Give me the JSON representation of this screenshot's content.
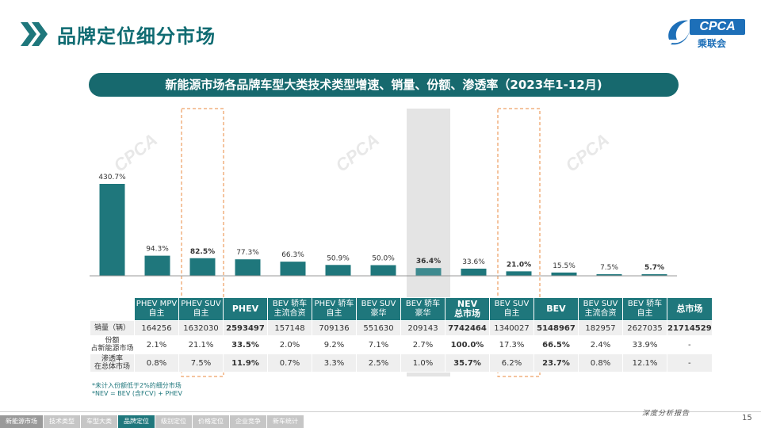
{
  "header": {
    "title": "品牌定位细分市场"
  },
  "logo": {
    "brand": "CPCA",
    "sub": "乘联会"
  },
  "banner": {
    "title": "新能源市场各品牌车型大类技术类型增速、销量、份额、渗透率（2023年1-12月)"
  },
  "watermark": {
    "text": "CPCA"
  },
  "chart_data": {
    "type": "bar",
    "categories": [
      "PHEV MPV 自主",
      "PHEV SUV 自主",
      "PHEV",
      "BEV 轿车 主流合资",
      "PHEV 轿车 自主",
      "BEV SUV 豪华",
      "BEV 轿车 豪华",
      "NEV 总市场",
      "BEV SUV 自主",
      "BEV",
      "BEV SUV 主流合资",
      "BEV 轿车 自主",
      "总市场"
    ],
    "values": [
      430.7,
      94.3,
      82.5,
      77.3,
      66.3,
      50.9,
      50.0,
      36.4,
      33.6,
      21.0,
      15.5,
      7.5,
      5.7
    ],
    "value_labels": [
      "430.7%",
      "94.3%",
      "82.5%",
      "77.3%",
      "66.3%",
      "50.9%",
      "50.0%",
      "36.4%",
      "33.6%",
      "21.0%",
      "15.5%",
      "7.5%",
      "5.7%"
    ],
    "bold_indices": [
      2,
      7,
      9,
      12
    ],
    "highlight_dashed": [
      2,
      9
    ],
    "highlight_shaded": [
      7
    ],
    "ylim": [
      0,
      430.7
    ],
    "colors": {
      "bar": "#1f777c",
      "bar_nev": "#3e8a8f",
      "dash": "#e8893f",
      "shade": "#d9d9d9"
    }
  },
  "table": {
    "headers": [
      [
        "PHEV MPV",
        "自主"
      ],
      [
        "PHEV SUV",
        "自主"
      ],
      [
        "PHEV"
      ],
      [
        "BEV 轿车",
        "主流合资"
      ],
      [
        "PHEV 轿车",
        "自主"
      ],
      [
        "BEV SUV",
        "豪华"
      ],
      [
        "BEV 轿车",
        "豪华"
      ],
      [
        "NEV",
        "总市场"
      ],
      [
        "BEV SUV",
        "自主"
      ],
      [
        "BEV"
      ],
      [
        "BEV SUV",
        "主流合资"
      ],
      [
        "BEV 轿车",
        "自主"
      ],
      [
        "总市场"
      ]
    ],
    "bold_header_indices": [
      2,
      7,
      9,
      12
    ],
    "rows": [
      {
        "label": [
          "销量（辆）"
        ],
        "values": [
          "164256",
          "1632030",
          "2593497",
          "157148",
          "709136",
          "551630",
          "209143",
          "7742464",
          "1340027",
          "5148967",
          "182957",
          "2627035",
          "21714529"
        ]
      },
      {
        "label": [
          "份额",
          "占新能源市场"
        ],
        "values": [
          "2.1%",
          "21.1%",
          "33.5%",
          "2.0%",
          "9.2%",
          "7.1%",
          "2.7%",
          "100.0%",
          "17.3%",
          "66.5%",
          "2.4%",
          "33.9%",
          "-"
        ]
      },
      {
        "label": [
          "渗透率",
          "在总体市场"
        ],
        "values": [
          "0.8%",
          "7.5%",
          "11.9%",
          "0.7%",
          "3.3%",
          "2.5%",
          "1.0%",
          "35.7%",
          "6.2%",
          "23.7%",
          "0.8%",
          "12.1%",
          "-"
        ]
      }
    ]
  },
  "notes": [
    "*未计入份额低于2%的细分市场",
    "*NEV = BEV (含FCV) + PHEV"
  ],
  "footer": {
    "tagline": "深度分析报告",
    "page": "15",
    "nav": [
      "新能源市场",
      "技术类型",
      "车型大类",
      "品牌定位",
      "级别定位",
      "价格定位",
      "企业竞争",
      "新车统计"
    ],
    "active_index": 3
  }
}
